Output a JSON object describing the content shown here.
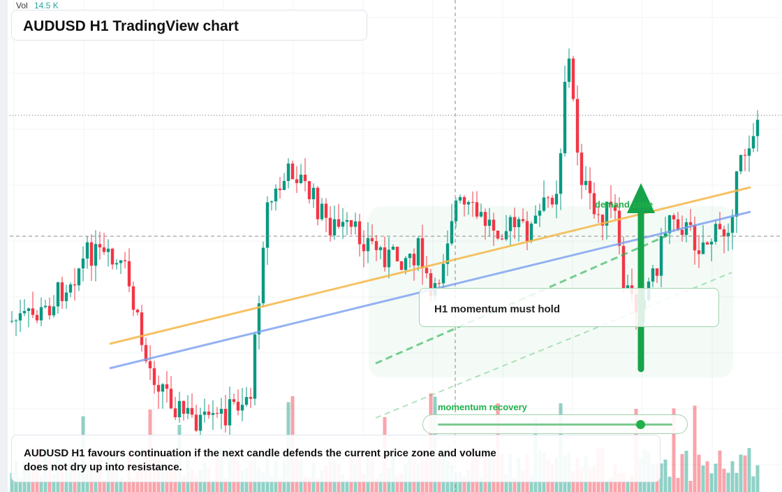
{
  "header": {
    "title": "AUDUSD H1 TradingView chart"
  },
  "volume": {
    "label": "Vol",
    "value": "14.5 K"
  },
  "annotations": {
    "callout": "H1 momentum must hold",
    "zone": "demand zone",
    "slider": "momentum recovery"
  },
  "footer": {
    "text": "AUDUSD H1 favours continuation if the next candle defends the current price zone and volume does not dry up into resistance."
  }
}
